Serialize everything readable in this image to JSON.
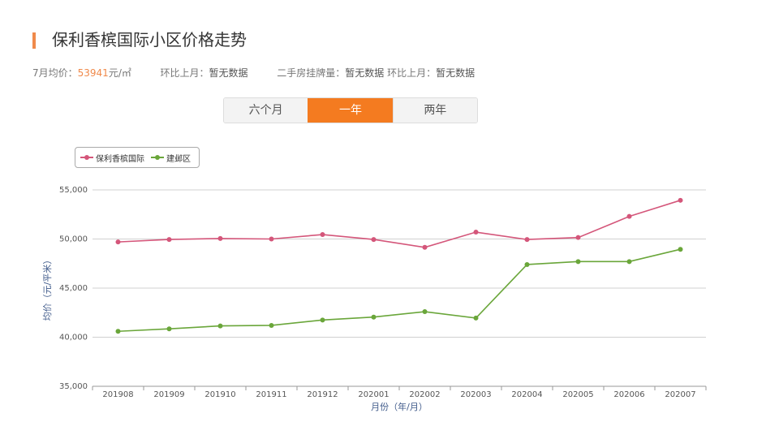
{
  "header": {
    "title": "保利香槟国际小区价格走势"
  },
  "stats": {
    "avg_label": "7月均价：",
    "avg_value": "53941",
    "avg_unit": "元/㎡",
    "mom_label": "环比上月：",
    "mom_value": "暂无数据",
    "listings_label": "二手房挂牌量：",
    "listings_value": "暂无数据",
    "listings_mom_label": "环比上月：",
    "listings_mom_value": "暂无数据"
  },
  "tabs": [
    {
      "label": "六个月",
      "active": false
    },
    {
      "label": "一年",
      "active": true
    },
    {
      "label": "两年",
      "active": false
    }
  ],
  "colors": {
    "accent": "#f47b20",
    "series_1": "#d4567a",
    "series_2": "#6aa63a"
  },
  "chart_data": {
    "type": "line",
    "title": "",
    "xlabel": "月份（年/月）",
    "ylabel": "均价（元/平米）",
    "ylim": [
      35000,
      55000
    ],
    "yticks": [
      35000,
      40000,
      45000,
      50000,
      55000
    ],
    "ytick_labels": [
      "35,000",
      "40,000",
      "45,000",
      "50,000",
      "55,000"
    ],
    "x": [
      "201908",
      "201909",
      "201910",
      "201911",
      "201912",
      "202001",
      "202002",
      "202003",
      "202004",
      "202005",
      "202006",
      "202007"
    ],
    "grid": "horizontal",
    "legend": "top-left",
    "series": [
      {
        "name": "保利香槟国际",
        "color": "#d4567a",
        "values": [
          49700,
          49950,
          50050,
          50000,
          50450,
          49950,
          49150,
          50700,
          49950,
          50150,
          52300,
          53941
        ]
      },
      {
        "name": "建邺区",
        "color": "#6aa63a",
        "values": [
          40600,
          40850,
          41150,
          41200,
          41750,
          42050,
          42600,
          41950,
          47400,
          47700,
          47700,
          48950
        ]
      }
    ]
  }
}
